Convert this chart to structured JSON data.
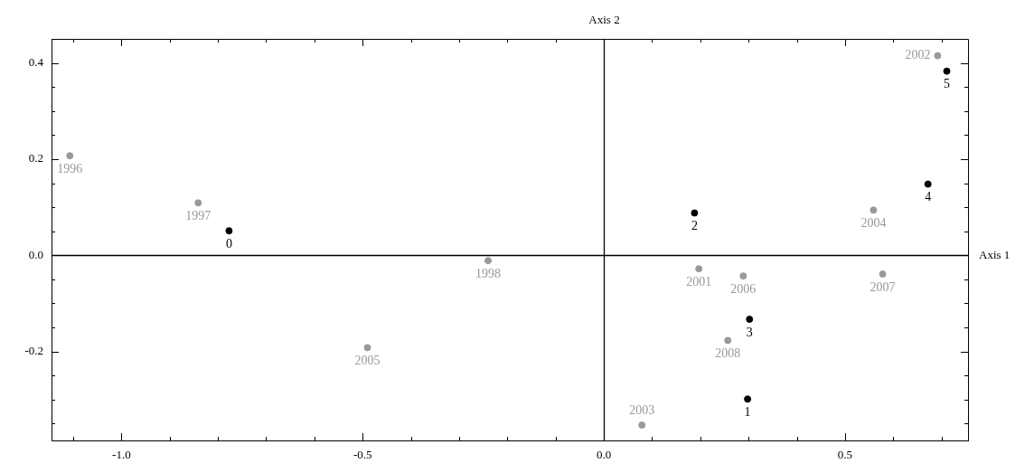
{
  "chart_data": {
    "type": "scatter",
    "xlabel": "Axis 1",
    "ylabel": "Axis 2",
    "marker": "circle",
    "xlim": [
      -1.145,
      0.755
    ],
    "ylim": [
      -0.385,
      0.45
    ],
    "xticks": [
      {
        "value": -1.1,
        "label": null
      },
      {
        "value": -1.0,
        "label": "-1.0"
      },
      {
        "value": -0.9,
        "label": null
      },
      {
        "value": -0.8,
        "label": null
      },
      {
        "value": -0.7,
        "label": null
      },
      {
        "value": -0.6,
        "label": null
      },
      {
        "value": -0.5,
        "label": "-0.5"
      },
      {
        "value": -0.4,
        "label": null
      },
      {
        "value": -0.3,
        "label": null
      },
      {
        "value": -0.2,
        "label": null
      },
      {
        "value": -0.1,
        "label": null
      },
      {
        "value": 0,
        "label": "0.0"
      },
      {
        "value": 0.1,
        "label": null
      },
      {
        "value": 0.2,
        "label": null
      },
      {
        "value": 0.3,
        "label": null
      },
      {
        "value": 0.4,
        "label": null
      },
      {
        "value": 0.5,
        "label": "0.5"
      },
      {
        "value": 0.6,
        "label": null
      },
      {
        "value": 0.7,
        "label": null
      }
    ],
    "yticks": [
      {
        "value": -0.35,
        "label": null
      },
      {
        "value": -0.3,
        "label": null
      },
      {
        "value": -0.25,
        "label": null
      },
      {
        "value": -0.2,
        "label": "-0.2"
      },
      {
        "value": -0.15,
        "label": null
      },
      {
        "value": -0.1,
        "label": null
      },
      {
        "value": -0.05,
        "label": null
      },
      {
        "value": 0,
        "label": "0.0"
      },
      {
        "value": 0.05,
        "label": null
      },
      {
        "value": 0.1,
        "label": null
      },
      {
        "value": 0.15,
        "label": null
      },
      {
        "value": 0.2,
        "label": "0.2"
      },
      {
        "value": 0.25,
        "label": null
      },
      {
        "value": 0.3,
        "label": null
      },
      {
        "value": 0.35,
        "label": null
      },
      {
        "value": 0.4,
        "label": "0.4"
      }
    ],
    "series": [
      {
        "color": "#999999",
        "x": [
          -1.107,
          -0.841,
          -0.24,
          -0.49,
          0.197,
          0.289,
          0.578,
          0.257,
          0.079,
          0.559,
          0.692
        ],
        "values": [
          0.207,
          0.109,
          -0.011,
          -0.192,
          -0.028,
          -0.043,
          -0.039,
          -0.177,
          -0.353,
          0.094,
          0.415
        ]
      },
      {
        "color": "#000000",
        "x": [
          -0.777,
          0.188,
          0.672,
          0.711,
          0.302,
          0.298
        ],
        "values": [
          0.051,
          0.088,
          0.148,
          0.383,
          -0.133,
          -0.299
        ]
      }
    ],
    "annotations": [
      {
        "text": "1996",
        "x": -1.107,
        "y": 0.207
      },
      {
        "text": "1997",
        "x": -0.841,
        "y": 0.109
      },
      {
        "text": "1998",
        "x": -0.24,
        "y": -0.011
      },
      {
        "text": "2005",
        "x": -0.49,
        "y": -0.192
      },
      {
        "text": "2001",
        "x": 0.197,
        "y": -0.028
      },
      {
        "text": "2006",
        "x": 0.289,
        "y": -0.043
      },
      {
        "text": "2007",
        "x": 0.578,
        "y": -0.039
      },
      {
        "text": "2008",
        "x": 0.257,
        "y": -0.177
      },
      {
        "text": "2003",
        "x": 0.079,
        "y": -0.353
      },
      {
        "text": "2004",
        "x": 0.559,
        "y": 0.094
      },
      {
        "text": "2002",
        "x": 0.692,
        "y": 0.415
      },
      {
        "text": "0",
        "x": -0.777,
        "y": 0.051
      },
      {
        "text": "2",
        "x": 0.188,
        "y": 0.088
      },
      {
        "text": "4",
        "x": 0.672,
        "y": 0.148
      },
      {
        "text": "5",
        "x": 0.711,
        "y": 0.383
      },
      {
        "text": "3",
        "x": 0.302,
        "y": -0.133
      },
      {
        "text": "1",
        "x": 0.298,
        "y": -0.299
      }
    ]
  }
}
